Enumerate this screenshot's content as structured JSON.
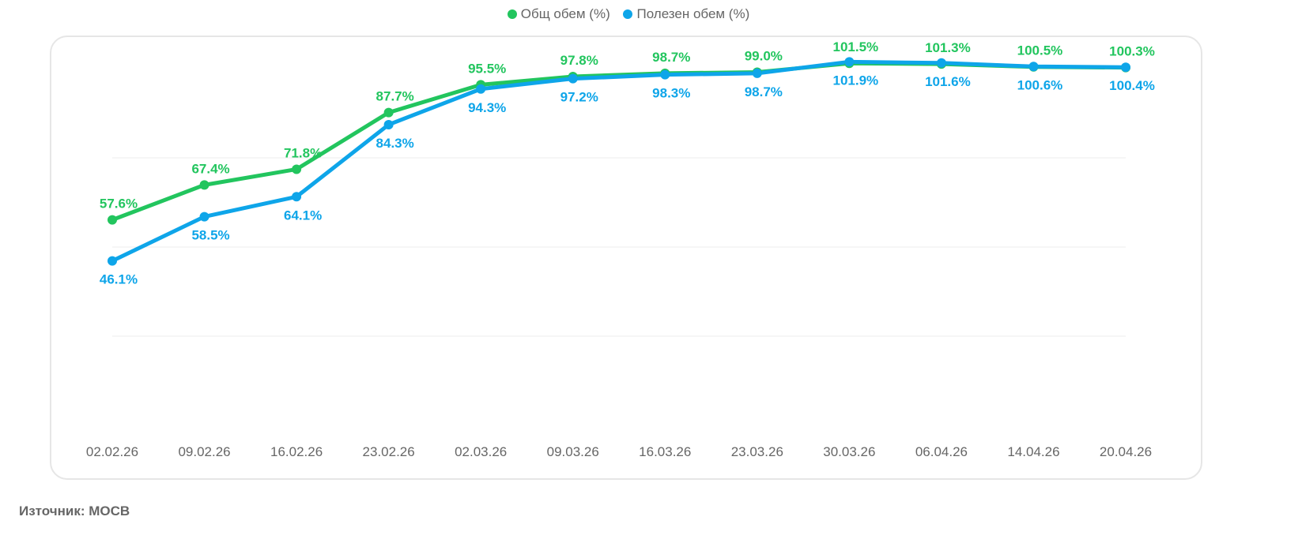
{
  "chart_data": {
    "type": "line",
    "title": "",
    "xlabel": "",
    "ylabel": "",
    "ylim": [
      0,
      110
    ],
    "grid": true,
    "gridlines": [
      25,
      50,
      75
    ],
    "legend_position": "top-center",
    "categories": [
      "02.02.26",
      "09.02.26",
      "16.02.26",
      "23.02.26",
      "02.03.26",
      "09.03.26",
      "16.03.26",
      "23.03.26",
      "30.03.26",
      "06.04.26",
      "14.04.26",
      "20.04.26"
    ],
    "series": [
      {
        "name": "Общ обем (%)",
        "color": "#22c55e",
        "values": [
          57.6,
          67.4,
          71.8,
          87.7,
          95.5,
          97.8,
          98.7,
          99.0,
          101.5,
          101.3,
          100.5,
          100.3
        ],
        "labels": [
          "57.6%",
          "67.4%",
          "71.8%",
          "87.7%",
          "95.5%",
          "97.8%",
          "98.7%",
          "99.0%",
          "101.5%",
          "101.3%",
          "100.5%",
          "100.3%"
        ]
      },
      {
        "name": "Полезен обем (%)",
        "color": "#0ea5e9",
        "values": [
          46.1,
          58.5,
          64.1,
          84.3,
          94.3,
          97.2,
          98.3,
          98.7,
          101.9,
          101.6,
          100.6,
          100.4
        ],
        "labels": [
          "46.1%",
          "58.5%",
          "64.1%",
          "84.3%",
          "94.3%",
          "97.2%",
          "98.3%",
          "98.7%",
          "101.9%",
          "101.6%",
          "100.6%",
          "100.4%"
        ]
      }
    ]
  },
  "source": "Източник: МОСВ"
}
